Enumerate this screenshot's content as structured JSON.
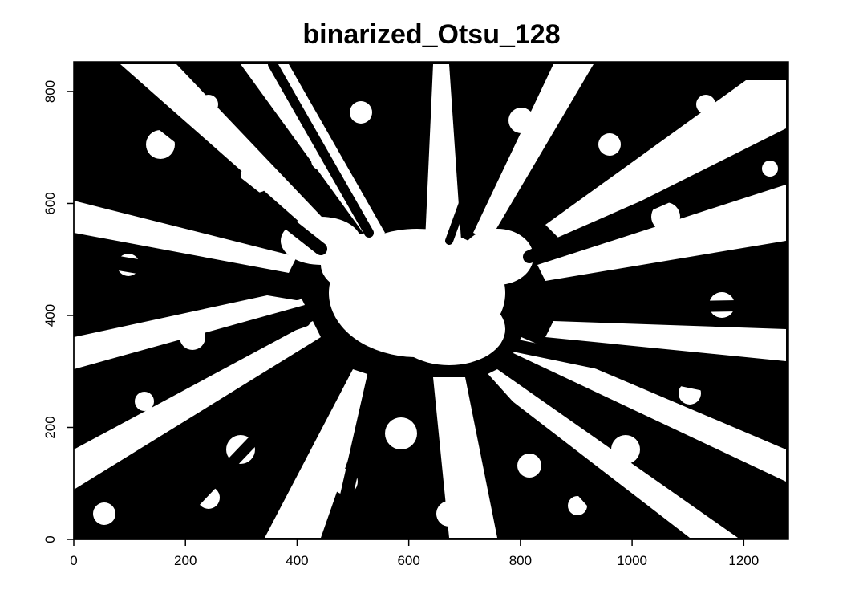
{
  "title": "binarized_Otsu_128",
  "image": {
    "kind": "binarized-grayscale-photo",
    "subject": "canopy",
    "foreground_color": "#000000",
    "background_color": "#ffffff"
  },
  "x_axis": {
    "range": [
      0,
      1280
    ],
    "ticks": [
      0,
      200,
      400,
      600,
      800,
      1000,
      1200
    ],
    "tick_labels": [
      "0",
      "200",
      "400",
      "600",
      "800",
      "1000",
      "1200"
    ]
  },
  "y_axis": {
    "range": [
      0,
      853
    ],
    "ticks": [
      0,
      200,
      400,
      600,
      800
    ],
    "tick_labels": [
      "0",
      "200",
      "400",
      "600",
      "800"
    ]
  }
}
